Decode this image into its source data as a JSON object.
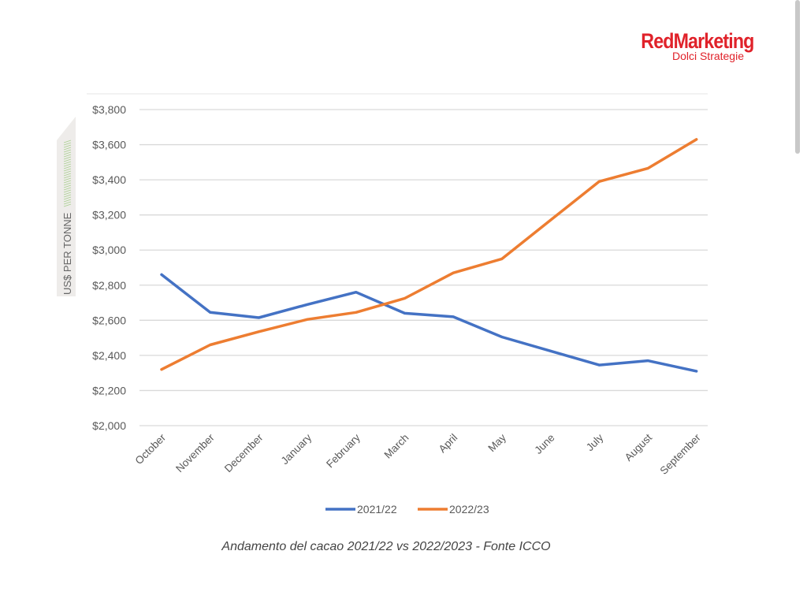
{
  "logo": {
    "brand": "RedMarketing",
    "tagline": "Dolci Strategie",
    "color": "#e0222a"
  },
  "caption": "Andamento del cacao 2021/22 vs 2022/2023 - Fonte ICCO",
  "chart_data": {
    "type": "line",
    "title": "",
    "xlabel": "",
    "ylabel": "US$ PER TONNE",
    "categories": [
      "October",
      "November",
      "December",
      "January",
      "February",
      "March",
      "April",
      "May",
      "June",
      "July",
      "August",
      "September"
    ],
    "series": [
      {
        "name": "2021/22",
        "color": "#4472c4",
        "values": [
          2860,
          2645,
          2615,
          2690,
          2760,
          2640,
          2620,
          2505,
          2425,
          2345,
          2370,
          2310
        ]
      },
      {
        "name": "2022/23",
        "color": "#ed7d31",
        "values": [
          2320,
          2460,
          2535,
          2605,
          2645,
          2725,
          2870,
          2950,
          3170,
          3390,
          3465,
          3630
        ]
      }
    ],
    "ylim": [
      2000,
      3800
    ],
    "yticks": [
      2000,
      2200,
      2400,
      2600,
      2800,
      3000,
      3200,
      3400,
      3600,
      3800
    ],
    "ytick_labels": [
      "$2,000",
      "$2,200",
      "$2,400",
      "$2,600",
      "$2,800",
      "$3,000",
      "$3,200",
      "$3,400",
      "$3,600",
      "$3,800"
    ],
    "grid": true,
    "legend": "bottom-center",
    "gridline_color": "#d9d9d9"
  }
}
